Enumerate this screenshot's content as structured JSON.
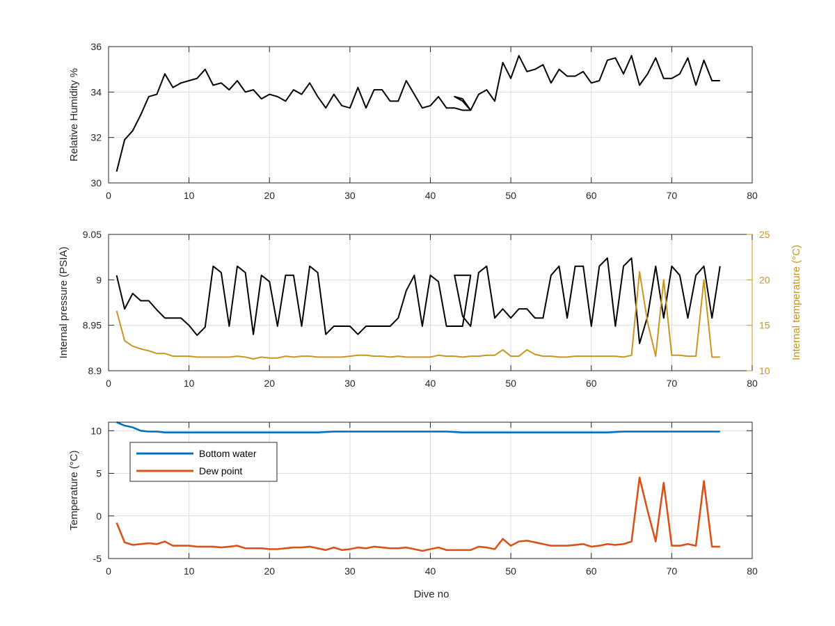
{
  "chart_data": [
    {
      "type": "line",
      "title": "",
      "xlabel": "",
      "ylabel": "Relative Humidity %",
      "xlim": [
        0,
        80
      ],
      "ylim": [
        30,
        36
      ],
      "xticks": [
        0,
        10,
        20,
        30,
        40,
        50,
        60,
        70,
        80
      ],
      "yticks": [
        30,
        32,
        34,
        36
      ],
      "grid": true,
      "series": [
        {
          "color": "#000000",
          "x": [
            1,
            2,
            3,
            4,
            5,
            6,
            7,
            8,
            9,
            10,
            11,
            12,
            13,
            14,
            15,
            16,
            17,
            18,
            19,
            20,
            21,
            22,
            23,
            24,
            25,
            26,
            27,
            28,
            29,
            30,
            31,
            32,
            33,
            34,
            35,
            36,
            37,
            38,
            39,
            40,
            41,
            42,
            43,
            44,
            45,
            44,
            43,
            44,
            45,
            46,
            47,
            48,
            49,
            50,
            51,
            52,
            53,
            54,
            55,
            56,
            57,
            58,
            59,
            60,
            61,
            62,
            63,
            64,
            65,
            66,
            67,
            68,
            69,
            70,
            71,
            72,
            73,
            74,
            75,
            76
          ],
          "y": [
            30.5,
            31.9,
            32.3,
            33.0,
            33.8,
            33.9,
            34.8,
            34.2,
            34.4,
            34.5,
            34.6,
            35.0,
            34.3,
            34.4,
            34.1,
            34.5,
            34.0,
            34.1,
            33.7,
            33.9,
            33.8,
            33.6,
            34.1,
            33.9,
            34.4,
            33.8,
            33.3,
            33.9,
            33.4,
            33.3,
            34.2,
            33.3,
            34.1,
            34.1,
            33.6,
            33.6,
            34.5,
            33.9,
            33.3,
            33.4,
            33.8,
            33.3,
            33.3,
            33.2,
            33.2,
            33.7,
            33.8,
            33.6,
            33.2,
            33.9,
            34.1,
            33.6,
            35.3,
            34.6,
            35.6,
            34.9,
            35.0,
            35.2,
            34.4,
            35.0,
            34.7,
            34.7,
            34.9,
            34.4,
            34.5,
            35.4,
            35.5,
            34.8,
            35.6,
            34.3,
            34.8,
            35.5,
            34.6,
            34.6,
            34.8,
            35.5,
            34.3,
            35.4,
            34.5,
            34.5
          ]
        }
      ]
    },
    {
      "type": "line",
      "title": "",
      "xlabel": "",
      "ylabel": "Internal pressure (PSIA)",
      "y2label": "Internal temperature (°C)",
      "xlim": [
        0,
        80
      ],
      "ylim": [
        8.9,
        9.05
      ],
      "y2lim": [
        10,
        25
      ],
      "xticks": [
        0,
        10,
        20,
        30,
        40,
        50,
        60,
        70,
        80
      ],
      "yticks": [
        8.9,
        8.95,
        9,
        9.05
      ],
      "ytick_labels": [
        "8.9",
        "8.95",
        "9",
        "9.05"
      ],
      "y2ticks": [
        10,
        15,
        20,
        25
      ],
      "grid": true,
      "series": [
        {
          "axis": "left",
          "color": "#000000",
          "x": [
            1,
            2,
            3,
            4,
            5,
            6,
            7,
            8,
            9,
            10,
            11,
            12,
            13,
            14,
            15,
            16,
            17,
            18,
            19,
            20,
            21,
            22,
            23,
            24,
            25,
            26,
            27,
            28,
            29,
            30,
            31,
            32,
            33,
            34,
            35,
            36,
            37,
            38,
            39,
            40,
            41,
            42,
            43,
            44,
            45,
            44,
            43,
            44,
            45,
            46,
            47,
            48,
            49,
            50,
            51,
            52,
            53,
            54,
            55,
            56,
            57,
            58,
            59,
            60,
            61,
            62,
            63,
            64,
            65,
            66,
            67,
            68,
            69,
            70,
            71,
            72,
            73,
            74,
            75,
            76
          ],
          "y": [
            9.005,
            8.968,
            8.985,
            8.977,
            8.977,
            8.967,
            8.958,
            8.958,
            8.958,
            8.95,
            8.939,
            8.948,
            9.015,
            9.008,
            8.949,
            9.015,
            9.008,
            8.94,
            9.005,
            8.998,
            8.949,
            9.005,
            9.005,
            8.949,
            9.015,
            9.008,
            8.94,
            8.949,
            8.949,
            8.949,
            8.94,
            8.949,
            8.949,
            8.949,
            8.949,
            8.958,
            8.988,
            9.005,
            8.949,
            9.005,
            8.998,
            8.949,
            8.949,
            8.949,
            9.005,
            9.005,
            9.005,
            8.96,
            8.949,
            9.008,
            9.015,
            8.958,
            8.968,
            8.958,
            8.968,
            8.968,
            8.958,
            8.958,
            9.005,
            9.015,
            8.958,
            9.015,
            9.015,
            8.949,
            9.015,
            9.024,
            8.949,
            9.015,
            9.024,
            8.93,
            8.96,
            9.015,
            8.958,
            9.015,
            9.005,
            8.958,
            9.005,
            9.015,
            8.958,
            9.015
          ]
        },
        {
          "axis": "right",
          "color": "#C8951E",
          "x": [
            1,
            2,
            3,
            4,
            5,
            6,
            7,
            8,
            9,
            10,
            11,
            12,
            13,
            14,
            15,
            16,
            17,
            18,
            19,
            20,
            21,
            22,
            23,
            24,
            25,
            26,
            27,
            28,
            29,
            30,
            31,
            32,
            33,
            34,
            35,
            36,
            37,
            38,
            39,
            40,
            41,
            42,
            43,
            44,
            45,
            46,
            47,
            48,
            49,
            50,
            51,
            52,
            53,
            54,
            55,
            56,
            57,
            58,
            59,
            60,
            61,
            62,
            63,
            64,
            65,
            66,
            67,
            68,
            69,
            70,
            71,
            72,
            73,
            74,
            75,
            76
          ],
          "y": [
            16.6,
            13.3,
            12.7,
            12.4,
            12.2,
            11.9,
            11.9,
            11.6,
            11.6,
            11.6,
            11.5,
            11.5,
            11.5,
            11.5,
            11.5,
            11.6,
            11.5,
            11.3,
            11.5,
            11.4,
            11.4,
            11.6,
            11.5,
            11.6,
            11.6,
            11.5,
            11.5,
            11.5,
            11.5,
            11.6,
            11.7,
            11.7,
            11.6,
            11.6,
            11.5,
            11.6,
            11.5,
            11.5,
            11.5,
            11.5,
            11.7,
            11.6,
            11.6,
            11.5,
            11.6,
            11.6,
            11.7,
            11.7,
            12.3,
            11.6,
            11.6,
            12.3,
            11.8,
            11.6,
            11.6,
            11.5,
            11.5,
            11.6,
            11.6,
            11.6,
            11.6,
            11.6,
            11.6,
            11.5,
            11.7,
            20.9,
            15.3,
            11.6,
            20.0,
            11.7,
            11.7,
            11.6,
            11.6,
            20.0,
            11.5,
            11.5
          ]
        }
      ]
    },
    {
      "type": "line",
      "title": "",
      "xlabel": "Dive no",
      "ylabel": "Temperature (°C)",
      "xlim": [
        0,
        80
      ],
      "ylim": [
        -5,
        11
      ],
      "xticks": [
        0,
        10,
        20,
        30,
        40,
        50,
        60,
        70,
        80
      ],
      "yticks": [
        -5,
        0,
        5,
        10
      ],
      "grid": true,
      "legend": "upper-left",
      "series": [
        {
          "name": "Bottom water",
          "color": "#0072BD",
          "x": [
            1,
            2,
            3,
            4,
            5,
            6,
            7,
            8,
            9,
            10,
            12,
            14,
            16,
            18,
            20,
            22,
            24,
            26,
            28,
            30,
            32,
            34,
            36,
            38,
            40,
            42,
            44,
            46,
            48,
            50,
            52,
            54,
            56,
            58,
            60,
            62,
            64,
            66,
            68,
            70,
            72,
            74,
            76
          ],
          "y": [
            11.0,
            10.6,
            10.4,
            10.0,
            9.9,
            9.9,
            9.8,
            9.8,
            9.8,
            9.8,
            9.8,
            9.8,
            9.8,
            9.8,
            9.8,
            9.8,
            9.8,
            9.8,
            9.9,
            9.9,
            9.9,
            9.9,
            9.9,
            9.9,
            9.9,
            9.9,
            9.8,
            9.8,
            9.8,
            9.8,
            9.8,
            9.8,
            9.8,
            9.8,
            9.8,
            9.8,
            9.9,
            9.9,
            9.9,
            9.9,
            9.9,
            9.9,
            9.9
          ]
        },
        {
          "name": "Dew point",
          "color": "#D95319",
          "x": [
            1,
            2,
            3,
            4,
            5,
            6,
            7,
            8,
            9,
            10,
            11,
            12,
            13,
            14,
            15,
            16,
            17,
            18,
            19,
            20,
            21,
            22,
            23,
            24,
            25,
            26,
            27,
            28,
            29,
            30,
            31,
            32,
            33,
            34,
            35,
            36,
            37,
            38,
            39,
            40,
            41,
            42,
            43,
            44,
            45,
            46,
            47,
            48,
            49,
            50,
            51,
            52,
            53,
            54,
            55,
            56,
            57,
            58,
            59,
            60,
            61,
            62,
            63,
            64,
            65,
            66,
            67,
            68,
            69,
            70,
            71,
            72,
            73,
            74,
            75,
            76
          ],
          "y": [
            -0.8,
            -3.1,
            -3.4,
            -3.3,
            -3.2,
            -3.3,
            -3.0,
            -3.5,
            -3.5,
            -3.5,
            -3.6,
            -3.6,
            -3.6,
            -3.7,
            -3.6,
            -3.5,
            -3.8,
            -3.8,
            -3.8,
            -3.9,
            -3.9,
            -3.8,
            -3.7,
            -3.7,
            -3.6,
            -3.8,
            -4.0,
            -3.7,
            -4.0,
            -3.9,
            -3.7,
            -3.8,
            -3.6,
            -3.7,
            -3.8,
            -3.8,
            -3.7,
            -3.9,
            -4.1,
            -3.9,
            -3.7,
            -4.0,
            -4.0,
            -4.0,
            -4.0,
            -3.6,
            -3.7,
            -3.9,
            -2.7,
            -3.5,
            -3.0,
            -2.9,
            -3.1,
            -3.3,
            -3.5,
            -3.5,
            -3.5,
            -3.4,
            -3.3,
            -3.6,
            -3.5,
            -3.3,
            -3.4,
            -3.3,
            -3.0,
            4.5,
            0.6,
            -3.0,
            3.9,
            -3.5,
            -3.5,
            -3.3,
            -3.5,
            4.1,
            -3.6,
            -3.6
          ]
        }
      ]
    }
  ]
}
